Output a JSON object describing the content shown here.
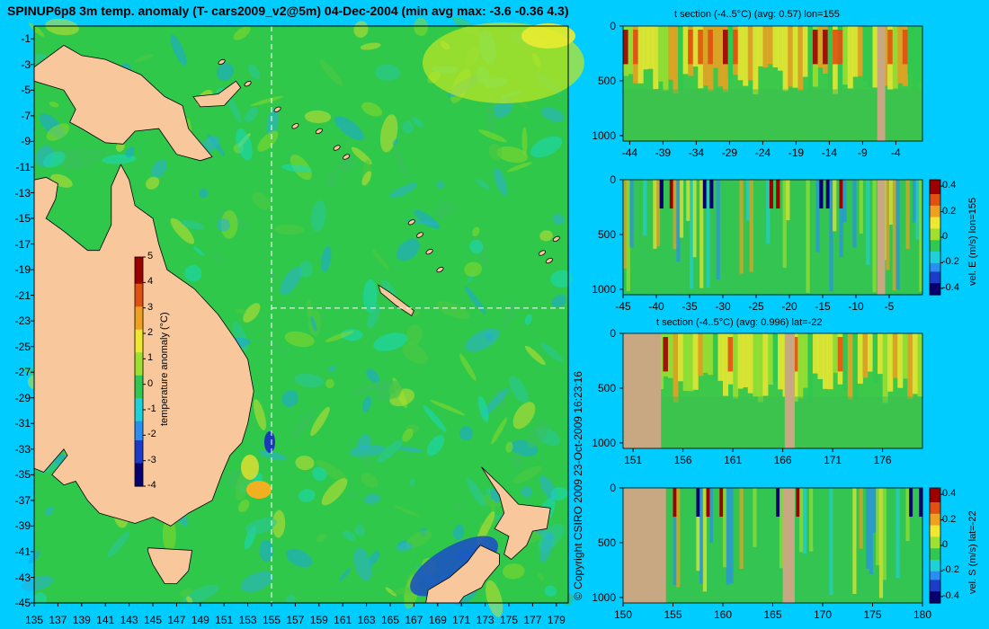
{
  "main_title": "SPINUP6p8 3m temp. anomaly (T- cars2009_v2@5m) 04-Dec-2004 (min avg max: -3.6 -0.36 4.3)",
  "copyright": "© Copyright CSIRO 2009   23-Oct-2009 16:23:16",
  "colors": {
    "background": "#00ccff",
    "land": "#f8c89c",
    "section_land": "#c8a882",
    "ocean_base": "#2fc84a",
    "colormap": [
      "#08006e",
      "#1c3cc8",
      "#2a8ef0",
      "#20d0d8",
      "#30c850",
      "#9ee030",
      "#f0e830",
      "#f0a020",
      "#e05010",
      "#9e0000"
    ]
  },
  "chart_data": [
    {
      "type": "heatmap",
      "title": "SPINUP6p8 3m temp. anomaly (T- cars2009_v2@5m) 04-Dec-2004 (min avg max: -3.6 -0.36 4.3)",
      "xlabel": "",
      "ylabel": "",
      "xlim": [
        135,
        180
      ],
      "ylim": [
        -45,
        0
      ],
      "x_ticks": [
        135,
        137,
        139,
        141,
        143,
        145,
        147,
        149,
        151,
        153,
        155,
        157,
        159,
        161,
        163,
        165,
        167,
        169,
        171,
        173,
        175,
        177,
        179
      ],
      "y_ticks": [
        -1,
        -3,
        -5,
        -7,
        -9,
        -11,
        -13,
        -15,
        -17,
        -19,
        -21,
        -23,
        -25,
        -27,
        -29,
        -31,
        -33,
        -35,
        -37,
        -39,
        -41,
        -43,
        -45
      ],
      "section_lines": {
        "lon": 155,
        "lat": -22
      },
      "colorbar": {
        "label": "temperature anomaly (°C)",
        "ticks": [
          5,
          4,
          3,
          2,
          1,
          0,
          -1,
          -2,
          -3,
          -4
        ],
        "range": [
          -4,
          5
        ]
      },
      "stats": {
        "min": -3.6,
        "avg": -0.36,
        "max": 4.3
      }
    },
    {
      "type": "heatmap",
      "title": "t section (-4..5°C) (avg: 0.57) lon=155",
      "x_ticks": [
        -44,
        -39,
        -34,
        -29,
        -24,
        -19,
        -14,
        -9,
        -4
      ],
      "y_ticks": [
        0,
        500,
        1000
      ],
      "xlim": [
        -45,
        0
      ],
      "ylim": [
        0,
        1050
      ],
      "land_spans": [
        [
          -6.8,
          -5.6
        ]
      ]
    },
    {
      "type": "heatmap",
      "title": "",
      "x_ticks": [
        -45,
        -40,
        -35,
        -30,
        -25,
        -20,
        -15,
        -10,
        -5
      ],
      "y_ticks": [
        0,
        500,
        1000
      ],
      "xlim": [
        -45,
        0
      ],
      "ylim": [
        0,
        1050
      ],
      "land_spans": [
        [
          -6.8,
          -5.6
        ]
      ],
      "colorbar": {
        "label": "vel. E (m/s) lon=155",
        "ticks": [
          0.4,
          0.2,
          0,
          -0.2,
          -0.4
        ],
        "range": [
          -0.45,
          0.45
        ]
      }
    },
    {
      "type": "heatmap",
      "title": "t section (-4..5°C) (avg: 0.996) lat=-22",
      "x_ticks": [
        151,
        156,
        161,
        166,
        171,
        176
      ],
      "y_ticks": [
        0,
        500,
        1000
      ],
      "xlim": [
        150,
        180
      ],
      "ylim": [
        0,
        1050
      ],
      "land_spans": [
        [
          150,
          153.8
        ],
        [
          166.2,
          167.2
        ]
      ]
    },
    {
      "type": "heatmap",
      "title": "",
      "x_ticks": [
        150,
        155,
        160,
        165,
        170,
        175,
        180
      ],
      "y_ticks": [
        0,
        500,
        1000
      ],
      "xlim": [
        150,
        180
      ],
      "ylim": [
        0,
        1050
      ],
      "land_spans": [
        [
          150,
          154.3
        ],
        [
          166,
          167.2
        ]
      ],
      "colorbar": {
        "label": "vel. S (m/s) lat=-22",
        "ticks": [
          0.4,
          0.2,
          0,
          -0.2,
          -0.4
        ],
        "range": [
          -0.45,
          0.45
        ]
      }
    }
  ]
}
